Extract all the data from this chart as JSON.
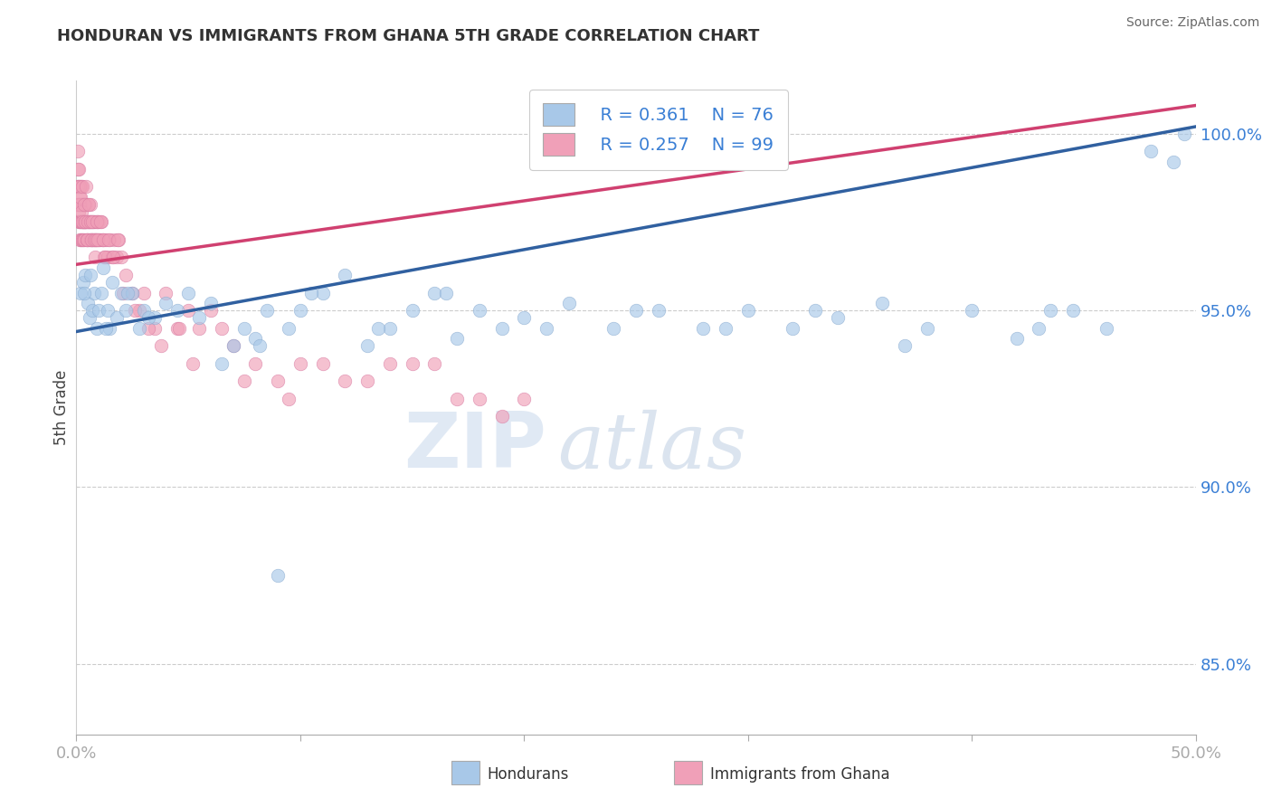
{
  "title": "HONDURAN VS IMMIGRANTS FROM GHANA 5TH GRADE CORRELATION CHART",
  "source": "Source: ZipAtlas.com",
  "ylabel": "5th Grade",
  "xlim": [
    0.0,
    50.0
  ],
  "ylim": [
    83.0,
    101.5
  ],
  "yticks": [
    85.0,
    90.0,
    95.0,
    100.0
  ],
  "ytick_labels": [
    "85.0%",
    "90.0%",
    "95.0%",
    "100.0%"
  ],
  "legend_blue_r": "R = 0.361",
  "legend_blue_n": "N = 76",
  "legend_pink_r": "R = 0.257",
  "legend_pink_n": "N = 99",
  "blue_color": "#a8c8e8",
  "blue_edge_color": "#88aad0",
  "blue_line_color": "#3060a0",
  "pink_color": "#f0a0b8",
  "pink_edge_color": "#d878a0",
  "pink_line_color": "#d04070",
  "legend_text_color": "#3a7fd5",
  "blue_trend_x0": 0.0,
  "blue_trend_y0": 94.4,
  "blue_trend_x1": 50.0,
  "blue_trend_y1": 100.2,
  "pink_trend_x0": 0.0,
  "pink_trend_y0": 96.3,
  "pink_trend_x1": 50.0,
  "pink_trend_y1": 100.8,
  "blue_x": [
    0.2,
    0.3,
    0.4,
    0.5,
    0.6,
    0.7,
    0.8,
    0.9,
    1.0,
    1.1,
    1.2,
    1.4,
    1.5,
    1.6,
    1.8,
    2.0,
    2.2,
    2.5,
    2.8,
    3.0,
    3.5,
    4.0,
    4.5,
    5.0,
    5.5,
    6.0,
    7.0,
    7.5,
    8.0,
    8.5,
    9.0,
    9.5,
    10.0,
    11.0,
    12.0,
    13.0,
    14.0,
    15.0,
    16.0,
    17.0,
    18.0,
    19.0,
    20.0,
    22.0,
    24.0,
    26.0,
    28.0,
    30.0,
    32.0,
    34.0,
    36.0,
    38.0,
    40.0,
    42.0,
    43.0,
    44.5,
    46.0,
    48.0,
    49.0,
    49.5,
    1.3,
    2.3,
    3.2,
    6.5,
    8.2,
    10.5,
    13.5,
    16.5,
    21.0,
    25.0,
    29.0,
    33.0,
    37.0,
    43.5,
    0.35,
    0.65
  ],
  "blue_y": [
    95.5,
    95.8,
    96.0,
    95.2,
    94.8,
    95.0,
    95.5,
    94.5,
    95.0,
    95.5,
    96.2,
    95.0,
    94.5,
    95.8,
    94.8,
    95.5,
    95.0,
    95.5,
    94.5,
    95.0,
    94.8,
    95.2,
    95.0,
    95.5,
    94.8,
    95.2,
    94.0,
    94.5,
    94.2,
    95.0,
    87.5,
    94.5,
    95.0,
    95.5,
    96.0,
    94.0,
    94.5,
    95.0,
    95.5,
    94.2,
    95.0,
    94.5,
    94.8,
    95.2,
    94.5,
    95.0,
    94.5,
    95.0,
    94.5,
    94.8,
    95.2,
    94.5,
    95.0,
    94.2,
    94.5,
    95.0,
    94.5,
    99.5,
    99.2,
    100.0,
    94.5,
    95.5,
    94.8,
    93.5,
    94.0,
    95.5,
    94.5,
    95.5,
    94.5,
    95.0,
    94.5,
    95.0,
    94.0,
    95.0,
    95.5,
    96.0
  ],
  "pink_x": [
    0.05,
    0.07,
    0.08,
    0.1,
    0.12,
    0.13,
    0.15,
    0.17,
    0.18,
    0.2,
    0.22,
    0.23,
    0.25,
    0.27,
    0.28,
    0.3,
    0.32,
    0.33,
    0.35,
    0.37,
    0.4,
    0.42,
    0.45,
    0.47,
    0.5,
    0.52,
    0.55,
    0.58,
    0.6,
    0.62,
    0.65,
    0.68,
    0.7,
    0.73,
    0.75,
    0.78,
    0.8,
    0.83,
    0.85,
    0.88,
    0.9,
    0.93,
    0.95,
    0.98,
    1.0,
    1.05,
    1.1,
    1.15,
    1.2,
    1.25,
    1.3,
    1.4,
    1.5,
    1.6,
    1.7,
    1.8,
    1.9,
    2.0,
    2.2,
    2.5,
    2.8,
    3.0,
    3.5,
    4.0,
    4.5,
    5.0,
    5.5,
    6.0,
    7.0,
    8.0,
    9.0,
    10.0,
    12.0,
    14.0,
    16.0,
    18.0,
    20.0,
    0.06,
    0.09,
    0.11,
    0.14,
    0.16,
    0.19,
    0.21,
    0.24,
    0.26,
    0.29,
    0.31,
    0.34,
    0.36,
    0.38,
    0.43,
    0.48,
    0.53,
    0.57,
    0.63,
    0.67,
    0.72
  ],
  "pink_y": [
    98.5,
    99.0,
    98.0,
    98.5,
    97.8,
    98.2,
    97.5,
    98.0,
    98.5,
    97.0,
    98.0,
    98.5,
    97.5,
    98.0,
    97.5,
    98.0,
    97.5,
    98.0,
    97.5,
    98.0,
    97.5,
    98.0,
    97.5,
    97.0,
    97.5,
    98.0,
    97.5,
    97.0,
    97.5,
    98.0,
    97.5,
    97.0,
    97.5,
    97.0,
    97.5,
    97.0,
    97.5,
    97.0,
    97.5,
    97.0,
    97.5,
    97.0,
    97.5,
    97.0,
    97.5,
    97.0,
    97.5,
    97.0,
    97.0,
    96.5,
    97.0,
    96.5,
    97.0,
    96.5,
    97.0,
    96.5,
    97.0,
    96.5,
    96.0,
    95.5,
    95.0,
    95.5,
    94.5,
    95.5,
    94.5,
    95.0,
    94.5,
    95.0,
    94.0,
    93.5,
    93.0,
    93.5,
    93.0,
    93.5,
    93.5,
    92.5,
    92.5,
    98.0,
    97.5,
    98.0,
    97.5,
    97.0,
    97.5,
    97.0,
    97.5,
    97.0,
    97.5,
    97.0,
    97.5,
    97.0,
    97.5,
    97.5,
    97.0,
    97.0,
    97.5,
    97.0,
    97.5,
    97.0
  ],
  "pink_extra_x": [
    0.05,
    0.08,
    0.1,
    0.13,
    0.16,
    0.2,
    0.23,
    0.25,
    0.28,
    0.33,
    0.38,
    0.42,
    0.48,
    0.53,
    0.57,
    0.63,
    0.68,
    0.73,
    0.78,
    0.83,
    0.87,
    0.92,
    0.97,
    1.08,
    1.18,
    1.28,
    1.45,
    1.65,
    1.85,
    2.1,
    2.6,
    3.2,
    3.8,
    4.6,
    5.2,
    6.5,
    7.5,
    9.5,
    11.0,
    13.0,
    15.0,
    17.0,
    19.0
  ],
  "pink_extra_y": [
    99.5,
    98.5,
    99.0,
    98.0,
    98.5,
    98.2,
    97.8,
    98.5,
    97.5,
    98.0,
    97.5,
    98.5,
    97.0,
    97.5,
    98.0,
    97.5,
    97.0,
    97.5,
    97.0,
    96.5,
    97.0,
    97.5,
    97.0,
    97.5,
    97.0,
    96.5,
    97.0,
    96.5,
    97.0,
    95.5,
    95.0,
    94.5,
    94.0,
    94.5,
    93.5,
    94.5,
    93.0,
    92.5,
    93.5,
    93.0,
    93.5,
    92.5,
    92.0
  ]
}
